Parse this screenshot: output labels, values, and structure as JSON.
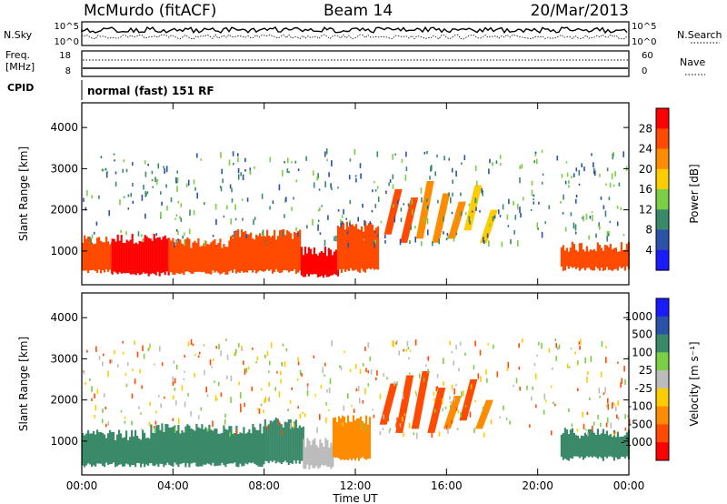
{
  "header": {
    "station": "McMurdo (fitACF)",
    "beam": "Beam 14",
    "date": "20/Mar/2013"
  },
  "status_panel": {
    "nsky_label": "N.Sky",
    "nsearch_label": "N.Search",
    "noise_ticks_left": [
      "10^5",
      "10^0"
    ],
    "noise_ticks_right": [
      "10^5",
      "10^0"
    ],
    "freq_label_line1": "Freq.",
    "freq_label_line2": "[MHz]",
    "freq_ticks": [
      "18",
      "8"
    ],
    "nave_label": "Nave",
    "nave_ticks": [
      "60",
      "0"
    ],
    "cpid_label": "CPID",
    "cpid_value": "normal (fast) 151 RF"
  },
  "colors": {
    "power": [
      "#1a1aff",
      "#2a52a8",
      "#3a8a6a",
      "#7bcf45",
      "#ffcc00",
      "#ff8c00",
      "#ff4a00",
      "#ff0000"
    ],
    "velocity": [
      "#ff0000",
      "#ff4a00",
      "#ff8c00",
      "#ffcc00",
      "#bcbcbc",
      "#7bcf45",
      "#3a8a6a",
      "#2a52a8",
      "#1a1aff"
    ]
  },
  "chart_data": [
    {
      "type": "heatmap",
      "name": "power",
      "xlabel": "Time UT",
      "ylabel": "Slant Range [km]",
      "colorbar_label": "Power [dB]",
      "colorbar_ticks": [
        "28",
        "24",
        "20",
        "16",
        "12",
        "8",
        "4"
      ],
      "x_ticks": [
        "00:00",
        "04:00",
        "08:00",
        "12:00",
        "16:00",
        "20:00",
        "00:00"
      ],
      "y_ticks": [
        "4000",
        "3000",
        "2000",
        "1000"
      ],
      "xlim_hours": [
        0,
        24
      ],
      "ylim_km": [
        180,
        4600
      ],
      "main_band_segments": [
        {
          "t0": 0.0,
          "t1": 1.3,
          "r_low": 480,
          "r_high": 1250,
          "value_db": 26
        },
        {
          "t0": 1.3,
          "t1": 3.8,
          "r_low": 420,
          "r_high": 1300,
          "value_db": 28
        },
        {
          "t0": 3.8,
          "t1": 6.5,
          "r_low": 450,
          "r_high": 1200,
          "value_db": 26
        },
        {
          "t0": 6.5,
          "t1": 9.6,
          "r_low": 480,
          "r_high": 1400,
          "value_db": 27
        },
        {
          "t0": 9.6,
          "t1": 11.2,
          "r_low": 380,
          "r_high": 1000,
          "value_db": 28
        },
        {
          "t0": 11.2,
          "t1": 13.0,
          "r_low": 500,
          "r_high": 1600,
          "value_db": 25
        },
        {
          "t0": 21.0,
          "t1": 24.0,
          "r_low": 550,
          "r_high": 1100,
          "value_db": 26
        }
      ],
      "streaks": [
        {
          "t": 13.5,
          "r_low": 1400,
          "r_high": 2500,
          "value_db": 26
        },
        {
          "t": 14.2,
          "r_low": 1200,
          "r_high": 2300,
          "value_db": 24
        },
        {
          "t": 14.9,
          "r_low": 1300,
          "r_high": 2700,
          "value_db": 22
        },
        {
          "t": 15.6,
          "r_low": 1200,
          "r_high": 2400,
          "value_db": 20
        },
        {
          "t": 16.3,
          "r_low": 1300,
          "r_high": 2200,
          "value_db": 20
        },
        {
          "t": 17.0,
          "r_low": 1500,
          "r_high": 2600,
          "value_db": 18
        },
        {
          "t": 17.7,
          "r_low": 1200,
          "r_high": 2000,
          "value_db": 16
        }
      ]
    },
    {
      "type": "heatmap",
      "name": "velocity",
      "xlabel": "Time UT",
      "ylabel": "Slant Range [km]",
      "colorbar_label": "Velocity [m s⁻¹]",
      "colorbar_ticks": [
        "1000",
        "500",
        "100",
        "25",
        "-25",
        "-100",
        "-500",
        "-1000"
      ],
      "x_ticks": [
        "00:00",
        "04:00",
        "08:00",
        "12:00",
        "16:00",
        "20:00",
        "00:00"
      ],
      "y_ticks": [
        "4000",
        "3000",
        "2000",
        "1000"
      ],
      "xlim_hours": [
        0,
        24
      ],
      "ylim_km": [
        180,
        4600
      ],
      "main_band_segments": [
        {
          "t0": 0.0,
          "t1": 3.0,
          "r_low": 400,
          "r_high": 1150,
          "value_ms": 120
        },
        {
          "t0": 3.0,
          "t1": 8.0,
          "r_low": 400,
          "r_high": 1300,
          "value_ms": 300
        },
        {
          "t0": 8.0,
          "t1": 9.7,
          "r_low": 450,
          "r_high": 1450,
          "value_ms": 350
        },
        {
          "t0": 9.7,
          "t1": 11.0,
          "r_low": 350,
          "r_high": 950,
          "value_ms": 20
        },
        {
          "t0": 11.0,
          "t1": 12.6,
          "r_low": 550,
          "r_high": 1500,
          "value_ms": -150
        },
        {
          "t0": 21.0,
          "t1": 24.0,
          "r_low": 550,
          "r_high": 1200,
          "value_ms": 150
        }
      ],
      "streaks": [
        {
          "t": 13.3,
          "r_low": 1400,
          "r_high": 2400,
          "value_ms": -600
        },
        {
          "t": 14.0,
          "r_low": 1200,
          "r_high": 2600,
          "value_ms": -600
        },
        {
          "t": 14.7,
          "r_low": 1300,
          "r_high": 2700,
          "value_ms": -600
        },
        {
          "t": 15.4,
          "r_low": 1200,
          "r_high": 2300,
          "value_ms": -500
        },
        {
          "t": 16.1,
          "r_low": 1300,
          "r_high": 2100,
          "value_ms": -400
        },
        {
          "t": 16.8,
          "r_low": 1500,
          "r_high": 2500,
          "value_ms": -500
        },
        {
          "t": 17.5,
          "r_low": 1300,
          "r_high": 2000,
          "value_ms": -300
        }
      ]
    }
  ]
}
